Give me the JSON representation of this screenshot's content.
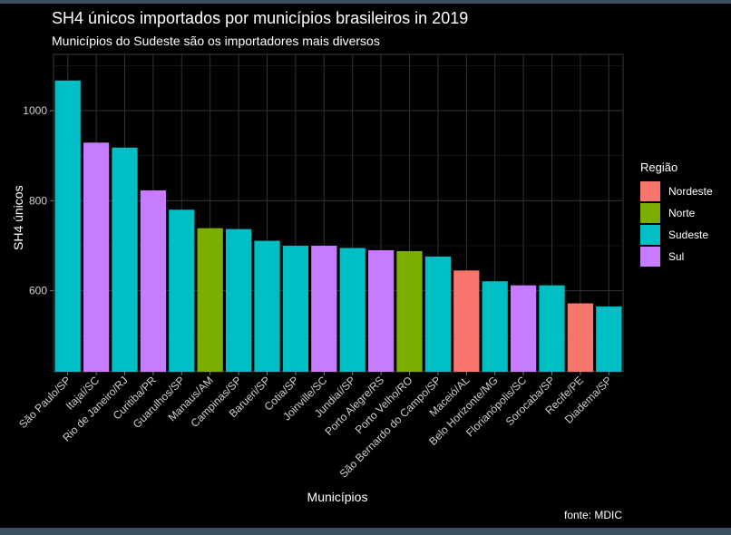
{
  "title": "SH4 únicos importados por municípios brasileiros in 2019",
  "subtitle": "Municípios do Sudeste são os importadores mais diversos",
  "source": "fonte: MDIC",
  "chart_data": {
    "type": "bar",
    "xlabel": "Municípios",
    "ylabel": "SH4 únicos",
    "ylim": [
      420,
      1125
    ],
    "yticks": [
      600,
      800,
      1000
    ],
    "grid": true,
    "legend_title": "Região",
    "legend_position": "right",
    "groups": [
      {
        "name": "Nordeste",
        "color": "#F8766D"
      },
      {
        "name": "Norte",
        "color": "#7CAE00"
      },
      {
        "name": "Sudeste",
        "color": "#00BFC4"
      },
      {
        "name": "Sul",
        "color": "#C77CFF"
      }
    ],
    "categories": [
      "São Paulo/SP",
      "Itajaí/SC",
      "Rio de Janeiro/RJ",
      "Curitiba/PR",
      "Guarulhos/SP",
      "Manaus/AM",
      "Campinas/SP",
      "Barueri/SP",
      "Cotia/SP",
      "Joinville/SC",
      "Jundiaí/SP",
      "Porto Alegre/RS",
      "Porto Velho/RO",
      "São Bernardo do Campo/SP",
      "Maceió/AL",
      "Belo Horizonte/MG",
      "Florianópolis/SC",
      "Sorocaba/SP",
      "Recife/PE",
      "Diadema/SP"
    ],
    "values": [
      1067,
      929,
      918,
      823,
      780,
      739,
      737,
      711,
      700,
      700,
      695,
      690,
      688,
      676,
      645,
      621,
      612,
      612,
      572,
      565
    ],
    "regions": [
      "Sudeste",
      "Sul",
      "Sudeste",
      "Sul",
      "Sudeste",
      "Norte",
      "Sudeste",
      "Sudeste",
      "Sudeste",
      "Sul",
      "Sudeste",
      "Sul",
      "Norte",
      "Sudeste",
      "Nordeste",
      "Sudeste",
      "Sul",
      "Sudeste",
      "Nordeste",
      "Sudeste"
    ]
  }
}
